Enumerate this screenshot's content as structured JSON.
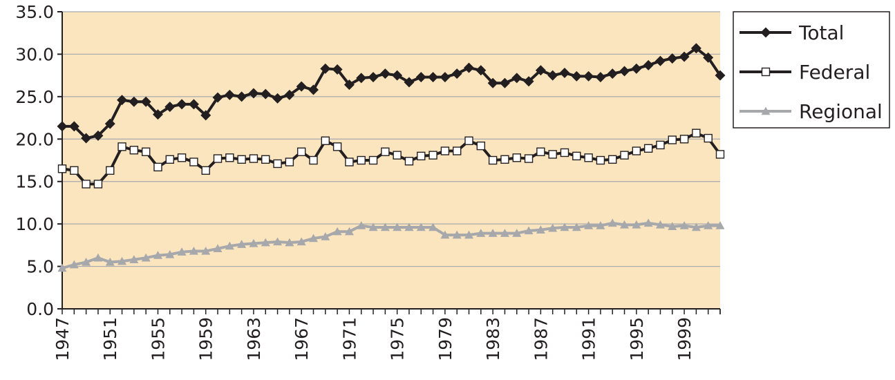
{
  "chart_data": {
    "type": "line",
    "title": "",
    "xlabel": "",
    "ylabel": "",
    "ylim": [
      0,
      35
    ],
    "xlim": [
      1947,
      2002
    ],
    "y_ticks": [
      "0.0",
      "5.0",
      "10.0",
      "15.0",
      "20.0",
      "25.0",
      "30.0",
      "35.0"
    ],
    "x_ticks": [
      "1947",
      "1951",
      "1955",
      "1959",
      "1963",
      "1967",
      "1971",
      "1975",
      "1979",
      "1983",
      "1987",
      "1991",
      "1995",
      "1999"
    ],
    "grid": "horizontal",
    "background": "#fbe5bf",
    "legend_position": "right",
    "x": [
      1947,
      1948,
      1949,
      1950,
      1951,
      1952,
      1953,
      1954,
      1955,
      1956,
      1957,
      1958,
      1959,
      1960,
      1961,
      1962,
      1963,
      1964,
      1965,
      1966,
      1967,
      1968,
      1969,
      1970,
      1971,
      1972,
      1973,
      1974,
      1975,
      1976,
      1977,
      1978,
      1979,
      1980,
      1981,
      1982,
      1983,
      1984,
      1985,
      1986,
      1987,
      1988,
      1989,
      1990,
      1991,
      1992,
      1993,
      1994,
      1995,
      1996,
      1997,
      1998,
      1999,
      2000,
      2001,
      2002
    ],
    "series": [
      {
        "name": "Total",
        "color": "#231f20",
        "marker": "diamond-filled",
        "values": [
          21.5,
          21.5,
          20.1,
          20.4,
          21.8,
          24.6,
          24.4,
          24.4,
          22.9,
          23.8,
          24.1,
          24.1,
          22.8,
          24.9,
          25.2,
          25.0,
          25.4,
          25.3,
          24.8,
          25.2,
          26.2,
          25.8,
          28.3,
          28.2,
          26.4,
          27.2,
          27.3,
          27.7,
          27.5,
          26.7,
          27.3,
          27.3,
          27.3,
          27.7,
          28.4,
          28.1,
          26.6,
          26.6,
          27.2,
          26.8,
          28.1,
          27.5,
          27.8,
          27.4,
          27.4,
          27.3,
          27.7,
          28.0,
          28.3,
          28.7,
          29.2,
          29.5,
          29.7,
          30.7,
          29.6,
          27.5
        ]
      },
      {
        "name": "Federal",
        "color": "#231f20",
        "marker": "square-open",
        "values": [
          16.5,
          16.3,
          14.7,
          14.7,
          16.3,
          19.1,
          18.7,
          18.5,
          16.7,
          17.6,
          17.8,
          17.3,
          16.3,
          17.7,
          17.8,
          17.6,
          17.7,
          17.6,
          17.1,
          17.3,
          18.5,
          17.5,
          19.8,
          19.1,
          17.3,
          17.5,
          17.5,
          18.5,
          18.1,
          17.4,
          18.0,
          18.1,
          18.6,
          18.6,
          19.8,
          19.2,
          17.5,
          17.6,
          17.8,
          17.7,
          18.5,
          18.2,
          18.4,
          18.0,
          17.8,
          17.5,
          17.6,
          18.1,
          18.6,
          18.9,
          19.3,
          19.9,
          20.0,
          20.7,
          20.1,
          18.2
        ]
      },
      {
        "name": "Regional",
        "color": "#a6a8ab",
        "marker": "triangle-filled",
        "values": [
          4.8,
          5.2,
          5.5,
          6.0,
          5.5,
          5.6,
          5.8,
          6.0,
          6.3,
          6.4,
          6.7,
          6.8,
          6.8,
          7.1,
          7.4,
          7.6,
          7.7,
          7.8,
          7.9,
          7.8,
          7.9,
          8.3,
          8.5,
          9.1,
          9.1,
          9.8,
          9.6,
          9.6,
          9.6,
          9.6,
          9.6,
          9.6,
          8.7,
          8.7,
          8.7,
          8.9,
          8.9,
          8.9,
          8.9,
          9.2,
          9.3,
          9.5,
          9.6,
          9.6,
          9.8,
          9.8,
          10.1,
          9.9,
          9.9,
          10.1,
          9.9,
          9.7,
          9.8,
          9.6,
          9.8,
          9.8
        ]
      }
    ]
  }
}
